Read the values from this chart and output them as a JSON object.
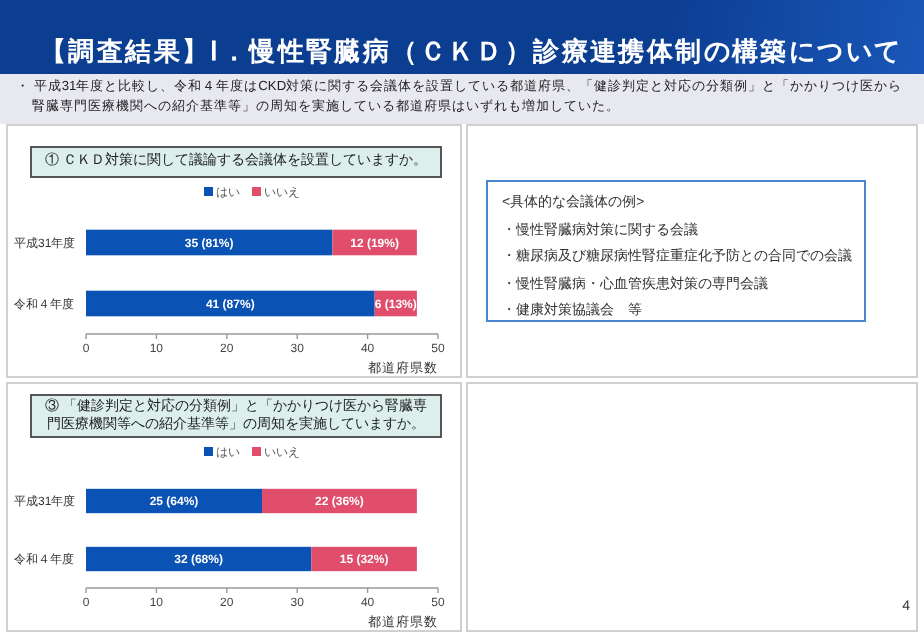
{
  "chart_data": [
    {
      "type": "other",
      "title": "【調査結果】Ⅰ．慢性腎臓病（ＣＫＤ）診療連携体制の構築について",
      "annotations": [
        "・ 平成31年度と比較し、令和４年度はCKD対策に関する会議体を設置している都道府県、「健診判定と対応の分類例」と「かかりつけ医から腎臓専門医療機関への紹介基準等」の周知を実施している都道府県はいずれも増加していた。"
      ]
    },
    {
      "type": "bar",
      "orientation": "horizontal",
      "stacked": true,
      "title": "① ＣＫＤ対策に関して議論する会議体を設置していますか。",
      "categories": [
        "平成31年度",
        "令和４年度"
      ],
      "xlabel": "都道府県数",
      "xlim": [
        0,
        50
      ],
      "xticks": [
        0,
        10,
        20,
        30,
        40,
        50
      ],
      "legend": "top",
      "series": [
        {
          "name": "はい",
          "color": "#0a52b4",
          "values": [
            35,
            41
          ],
          "value_labels": [
            "35 (81%)",
            "41 (87%)"
          ]
        },
        {
          "name": "いいえ",
          "color": "#e04e6c",
          "values": [
            12,
            6
          ],
          "value_labels": [
            "12 (19%)",
            "6 (13%)"
          ]
        }
      ]
    },
    {
      "type": "other",
      "title": "<具体的な会議体の例>",
      "annotations": [
        "・慢性腎臓病対策に関する会議",
        "・糖尿病及び糖尿病性腎症重症化予防との合同での会議",
        "・慢性腎臓病・心血管疾患対策の専門会議",
        "・健康対策協議会　等"
      ]
    },
    {
      "type": "bar",
      "orientation": "horizontal",
      "stacked": true,
      "title": "③ 「健診判定と対応の分類例」と「かかりつけ医から腎臓専門医療機関等への紹介基準等」の周知を実施していますか。",
      "categories": [
        "平成31年度",
        "令和４年度"
      ],
      "xlabel": "都道府県数",
      "xlim": [
        0,
        50
      ],
      "xticks": [
        0,
        10,
        20,
        30,
        40,
        50
      ],
      "legend": "top",
      "annotations": [
        "4"
      ],
      "series": [
        {
          "name": "はい",
          "color": "#0a52b4",
          "values": [
            25,
            32
          ],
          "value_labels": [
            "25 (64%)",
            "32 (68%)"
          ]
        },
        {
          "name": "いいえ",
          "color": "#e04e6c",
          "values": [
            22,
            15
          ],
          "value_labels": [
            "22 (36%)",
            "15 (32%)"
          ]
        }
      ]
    }
  ]
}
